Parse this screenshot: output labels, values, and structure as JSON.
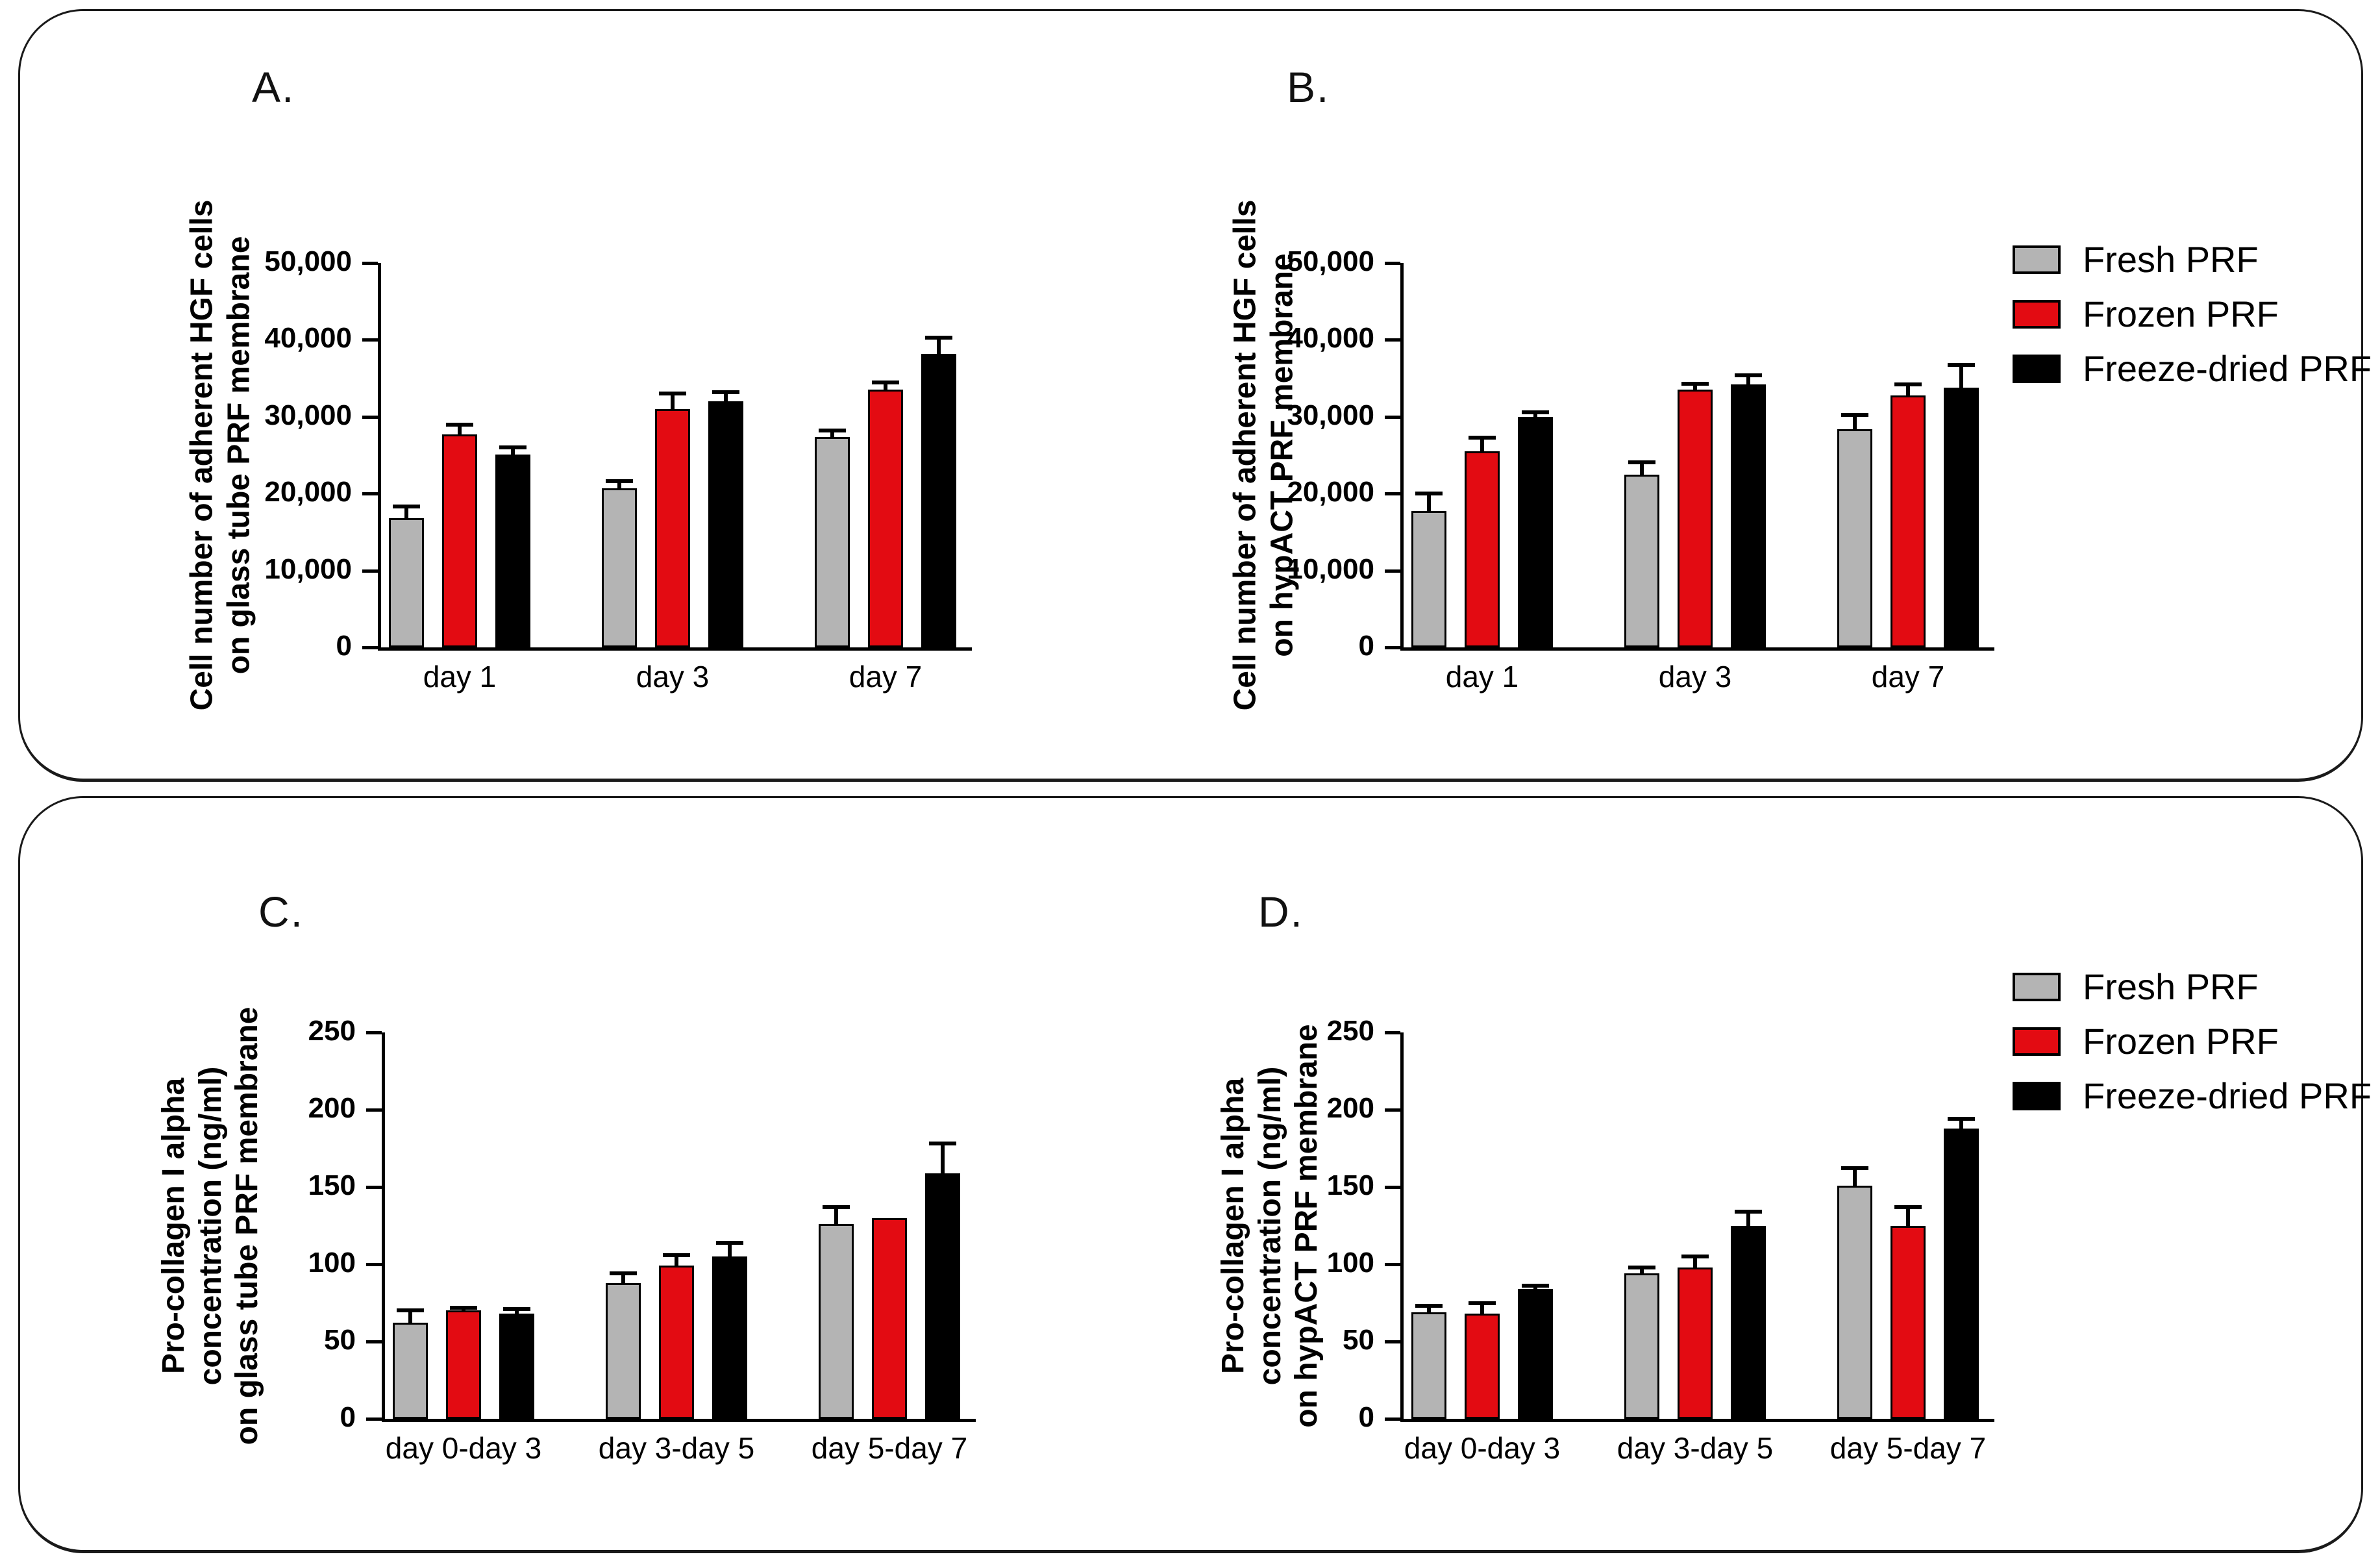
{
  "figure": {
    "background": "#ffffff",
    "box_border_color": "#1a1a1a",
    "axis_color": "#000000"
  },
  "legend": {
    "position": "right",
    "items": [
      {
        "label": "Fresh PRF",
        "color": "#b4b4b4"
      },
      {
        "label": "Frozen PRF",
        "color": "#e30b12"
      },
      {
        "label": "Freeze-dried PRF",
        "color": "#000000"
      }
    ]
  },
  "chart_data": [
    {
      "id": "A",
      "panel_label": "A.",
      "type": "bar",
      "ylabel_lines": [
        "Cell number of adherent HGF cells",
        "on glass tube  PRF membrane"
      ],
      "ylim": [
        0,
        50000
      ],
      "ytick_step": 10000,
      "ytick_labels": [
        "0",
        "10,000",
        "20,000",
        "30,000",
        "40,000",
        "50,000"
      ],
      "categories": [
        "day 1",
        "day 3",
        "day 7"
      ],
      "grid": false,
      "series": [
        {
          "name": "Fresh PRF",
          "color": "#b4b4b4",
          "values": [
            16800,
            20700,
            27400
          ],
          "errors": [
            1500,
            900,
            800
          ]
        },
        {
          "name": "Frozen PRF",
          "color": "#e30b12",
          "values": [
            27700,
            31000,
            33500
          ],
          "errors": [
            1300,
            2000,
            1000
          ]
        },
        {
          "name": "Freeze-dried PRF",
          "color": "#000000",
          "values": [
            25100,
            32000,
            38200
          ],
          "errors": [
            900,
            1200,
            2100
          ]
        }
      ]
    },
    {
      "id": "B",
      "panel_label": "B.",
      "type": "bar",
      "ylabel_lines": [
        "Cell number of adherent HGF cells",
        "on hypACT  PRF membrane"
      ],
      "ylim": [
        0,
        50000
      ],
      "ytick_step": 10000,
      "ytick_labels": [
        "0",
        "10,000",
        "20,000",
        "30,000",
        "40,000",
        "50,000"
      ],
      "categories": [
        "day 1",
        "day 3",
        "day 7"
      ],
      "grid": false,
      "series": [
        {
          "name": "Fresh PRF",
          "color": "#b4b4b4",
          "values": [
            17700,
            22500,
            28400
          ],
          "errors": [
            2300,
            1600,
            1800
          ]
        },
        {
          "name": "Frozen PRF",
          "color": "#e30b12",
          "values": [
            25500,
            33500,
            32800
          ],
          "errors": [
            1800,
            800,
            1400
          ]
        },
        {
          "name": "Freeze-dried PRF",
          "color": "#000000",
          "values": [
            30000,
            34200,
            33800
          ],
          "errors": [
            600,
            1200,
            2900
          ]
        }
      ]
    },
    {
      "id": "C",
      "panel_label": "C.",
      "type": "bar",
      "ylabel_lines": [
        "Pro-collagen I alpha",
        "concentration (ng/ml)",
        "on glass tube PRF membrane"
      ],
      "ylim": [
        0,
        250
      ],
      "ytick_step": 50,
      "ytick_labels": [
        "0",
        "50",
        "100",
        "150",
        "200",
        "250"
      ],
      "categories": [
        "day 0-day 3",
        "day 3-day 5",
        "day 5-day 7"
      ],
      "grid": false,
      "series": [
        {
          "name": "Fresh PRF",
          "color": "#b4b4b4",
          "values": [
            62,
            88,
            126
          ],
          "errors": [
            8,
            6,
            11
          ]
        },
        {
          "name": "Frozen PRF",
          "color": "#e30b12",
          "values": [
            70,
            99,
            130
          ],
          "errors": [
            2,
            7,
            0
          ]
        },
        {
          "name": "Freeze-dried PRF",
          "color": "#000000",
          "values": [
            68,
            105,
            159
          ],
          "errors": [
            3,
            9,
            19
          ]
        }
      ]
    },
    {
      "id": "D",
      "panel_label": "D.",
      "type": "bar",
      "ylabel_lines": [
        "Pro-collagen I alpha",
        "concentration (ng/ml)",
        "on hypACT PRF membrane"
      ],
      "ylim": [
        0,
        250
      ],
      "ytick_step": 50,
      "ytick_labels": [
        "0",
        "50",
        "100",
        "150",
        "200",
        "250"
      ],
      "categories": [
        "day 0-day 3",
        "day 3-day 5",
        "day 5-day 7"
      ],
      "grid": false,
      "series": [
        {
          "name": "Fresh PRF",
          "color": "#b4b4b4",
          "values": [
            69,
            94,
            151
          ],
          "errors": [
            4,
            4,
            11
          ]
        },
        {
          "name": "Frozen PRF",
          "color": "#e30b12",
          "values": [
            68,
            98,
            125
          ],
          "errors": [
            7,
            7,
            12
          ]
        },
        {
          "name": "Freeze-dried PRF",
          "color": "#000000",
          "values": [
            84,
            125,
            188
          ],
          "errors": [
            2,
            9,
            6
          ]
        }
      ]
    }
  ]
}
